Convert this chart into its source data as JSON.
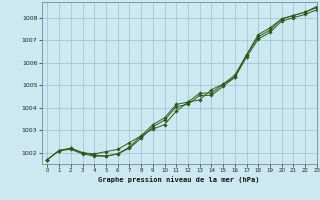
{
  "title": "Graphe pression niveau de la mer (hPa)",
  "bg_color": "#cce8f0",
  "plot_bg_color": "#cce8f0",
  "grid_color": "#9dbfcc",
  "line_color": "#2d5a1b",
  "xlim": [
    -0.5,
    23
  ],
  "ylim": [
    1001.5,
    1008.7
  ],
  "yticks": [
    1002,
    1003,
    1004,
    1005,
    1006,
    1007,
    1008
  ],
  "xticks": [
    0,
    1,
    2,
    3,
    4,
    5,
    6,
    7,
    8,
    9,
    10,
    11,
    12,
    13,
    14,
    15,
    16,
    17,
    18,
    19,
    20,
    21,
    22,
    23
  ],
  "series1": [
    1001.7,
    1002.1,
    1002.2,
    1002.0,
    1001.95,
    1002.05,
    1002.15,
    1002.45,
    1002.75,
    1003.05,
    1003.25,
    1003.85,
    1004.25,
    1004.35,
    1004.8,
    1005.05,
    1005.35,
    1006.35,
    1007.25,
    1007.55,
    1007.95,
    1008.1,
    1008.25,
    1008.5
  ],
  "series2": [
    1001.7,
    1002.1,
    1002.2,
    1002.0,
    1001.9,
    1001.85,
    1001.95,
    1002.25,
    1002.75,
    1003.25,
    1003.55,
    1004.15,
    1004.25,
    1004.65,
    1004.65,
    1005.05,
    1005.45,
    1006.35,
    1007.15,
    1007.45,
    1007.95,
    1008.1,
    1008.25,
    1008.45
  ],
  "series3": [
    1001.7,
    1002.1,
    1002.15,
    1001.95,
    1001.85,
    1001.85,
    1001.95,
    1002.2,
    1002.65,
    1003.15,
    1003.45,
    1004.05,
    1004.15,
    1004.55,
    1004.55,
    1004.95,
    1005.35,
    1006.25,
    1007.05,
    1007.35,
    1007.85,
    1008.0,
    1008.15,
    1008.35
  ]
}
